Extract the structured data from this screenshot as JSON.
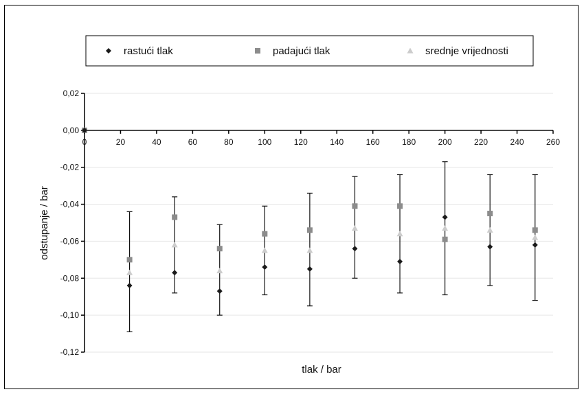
{
  "chart_data": {
    "type": "scatter",
    "xlabel": "tlak / bar",
    "ylabel": "odstupanje / bar",
    "xlim": [
      0,
      260
    ],
    "ylim": [
      -0.12,
      0.02
    ],
    "x_ticks": [
      0,
      20,
      40,
      60,
      80,
      100,
      120,
      140,
      160,
      180,
      200,
      220,
      240,
      260
    ],
    "x_tick_labels": [
      "0",
      "20",
      "40",
      "60",
      "80",
      "100",
      "120",
      "140",
      "160",
      "180",
      "200",
      "220",
      "240",
      "260"
    ],
    "y_ticks": [
      0.02,
      0.0,
      -0.02,
      -0.04,
      -0.06,
      -0.08,
      -0.1,
      -0.12
    ],
    "y_tick_labels": [
      "0,02",
      "0,00",
      "-0,02",
      "-0,04",
      "-0,06",
      "-0,08",
      "-0,10",
      "-0,12"
    ],
    "grid": "horizontal",
    "legend_position": "top",
    "series": [
      {
        "name": "rastući tlak",
        "marker": "diamond",
        "color": "#1a1a1a",
        "x": [
          0,
          25,
          50,
          75,
          100,
          125,
          150,
          175,
          200,
          225,
          250
        ],
        "y": [
          0.0,
          -0.084,
          -0.077,
          -0.087,
          -0.074,
          -0.075,
          -0.064,
          -0.071,
          -0.047,
          -0.063,
          -0.062
        ]
      },
      {
        "name": "padajući tlak",
        "marker": "square",
        "color": "#8c8c8c",
        "x": [
          0,
          25,
          50,
          75,
          100,
          125,
          150,
          175,
          200,
          225,
          250
        ],
        "y": [
          0.0,
          -0.07,
          -0.047,
          -0.064,
          -0.056,
          -0.054,
          -0.041,
          -0.041,
          -0.059,
          -0.045,
          -0.054
        ]
      },
      {
        "name": "srednje vrijednosti",
        "marker": "triangle",
        "color": "#cccccc",
        "x": [
          0,
          25,
          50,
          75,
          100,
          125,
          150,
          175,
          200,
          225,
          250
        ],
        "y": [
          0.0,
          -0.077,
          -0.062,
          -0.076,
          -0.065,
          -0.065,
          -0.053,
          -0.056,
          -0.053,
          -0.054,
          -0.058
        ],
        "error_low": [
          0.0,
          -0.109,
          -0.088,
          -0.1,
          -0.089,
          -0.095,
          -0.08,
          -0.088,
          -0.089,
          -0.084,
          -0.092
        ],
        "error_high": [
          0.0,
          -0.044,
          -0.036,
          -0.051,
          -0.041,
          -0.034,
          -0.025,
          -0.024,
          -0.017,
          -0.024,
          -0.024
        ]
      }
    ]
  }
}
